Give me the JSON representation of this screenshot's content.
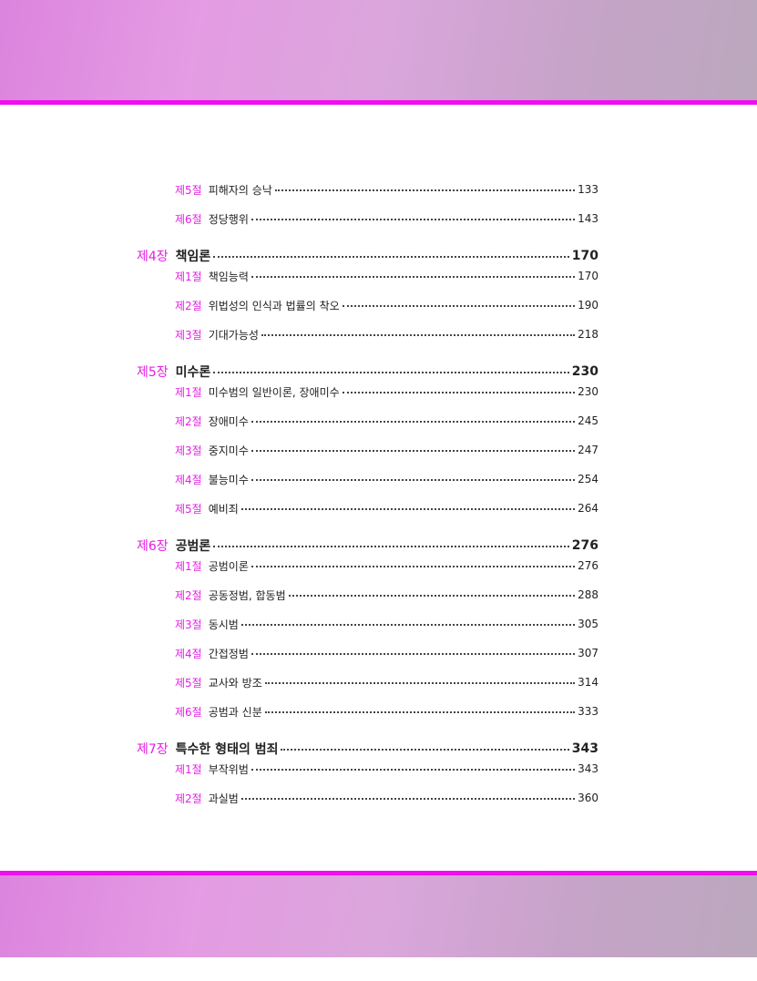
{
  "colors": {
    "accent": "#e61ee6",
    "band_line": "#f00ef0"
  },
  "entries": [
    {
      "type": "section",
      "label": "제5절",
      "title": "피해자의 승낙",
      "page": "133"
    },
    {
      "type": "section",
      "label": "제6절",
      "title": "정당행위",
      "page": "143"
    },
    {
      "type": "chapter",
      "label": "제4장",
      "title": "책임론",
      "page": "170"
    },
    {
      "type": "section",
      "label": "제1절",
      "title": "책임능력",
      "page": "170"
    },
    {
      "type": "section",
      "label": "제2절",
      "title": "위법성의 인식과 법률의 착오",
      "page": "190"
    },
    {
      "type": "section",
      "label": "제3절",
      "title": "기대가능성",
      "page": "218"
    },
    {
      "type": "chapter",
      "label": "제5장",
      "title": "미수론",
      "page": "230"
    },
    {
      "type": "section",
      "label": "제1절",
      "title": "미수범의 일반이론, 장애미수",
      "page": "230"
    },
    {
      "type": "section",
      "label": "제2절",
      "title": "장애미수",
      "page": "245"
    },
    {
      "type": "section",
      "label": "제3절",
      "title": "중지미수",
      "page": "247"
    },
    {
      "type": "section",
      "label": "제4절",
      "title": "불능미수",
      "page": "254"
    },
    {
      "type": "section",
      "label": "제5절",
      "title": "예비죄",
      "page": "264"
    },
    {
      "type": "chapter",
      "label": "제6장",
      "title": "공범론",
      "page": "276"
    },
    {
      "type": "section",
      "label": "제1절",
      "title": "공범이론",
      "page": "276"
    },
    {
      "type": "section",
      "label": "제2절",
      "title": "공동정범, 합동범",
      "page": "288"
    },
    {
      "type": "section",
      "label": "제3절",
      "title": "동시범",
      "page": "305"
    },
    {
      "type": "section",
      "label": "제4절",
      "title": "간접정범",
      "page": "307"
    },
    {
      "type": "section",
      "label": "제5절",
      "title": "교사와 방조",
      "page": "314"
    },
    {
      "type": "section",
      "label": "제6절",
      "title": "공범과 신분",
      "page": "333"
    },
    {
      "type": "chapter",
      "label": "제7장",
      "title": "특수한 형태의 범죄",
      "page": "343"
    },
    {
      "type": "section",
      "label": "제1절",
      "title": "부작위범",
      "page": "343"
    },
    {
      "type": "section",
      "label": "제2절",
      "title": "과실범",
      "page": "360"
    }
  ]
}
